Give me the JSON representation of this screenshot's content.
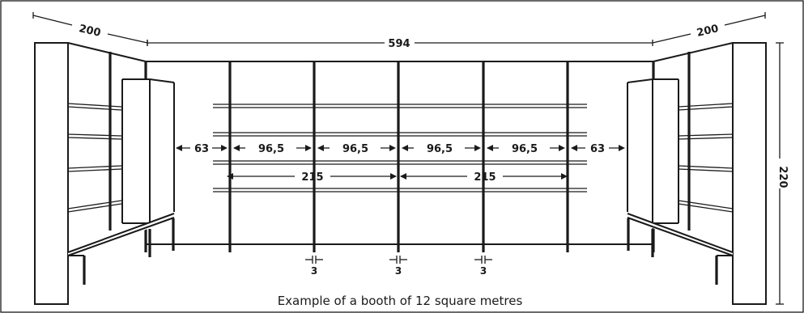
{
  "dimensions": {
    "left_depth": "200",
    "back_width": "594",
    "right_depth": "200",
    "height": "220",
    "gap_left": "63",
    "gap_right": "63",
    "bay_1": "96,5",
    "bay_2": "96,5",
    "bay_3": "96,5",
    "bay_4": "96,5",
    "span_left": "215",
    "span_right": "215",
    "post_1": "3",
    "post_2": "3",
    "post_3": "3"
  },
  "caption": "Example of a booth of 12 square metres"
}
